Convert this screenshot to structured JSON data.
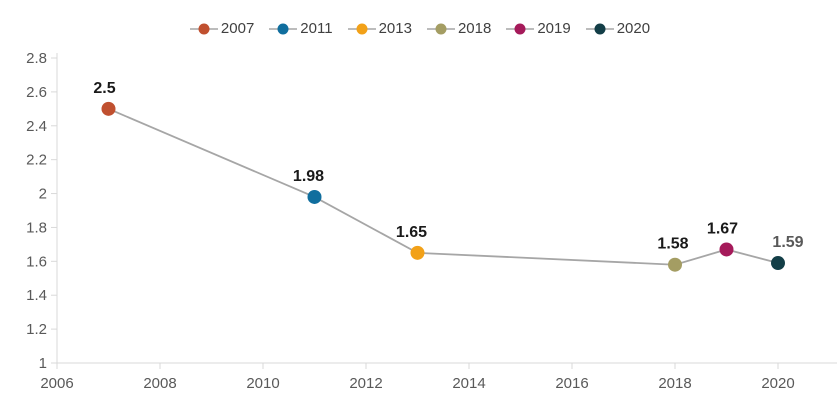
{
  "chart_data": {
    "type": "line",
    "title": "",
    "xlabel": "",
    "ylabel": "",
    "x": [
      2007,
      2011,
      2013,
      2018,
      2019,
      2020
    ],
    "values": [
      2.5,
      1.98,
      1.65,
      1.58,
      1.67,
      1.59
    ],
    "point_labels": [
      "2.5",
      "1.98",
      "1.65",
      "1.58",
      "1.67",
      "1.59"
    ],
    "point_colors": [
      "#c0502f",
      "#106e9e",
      "#f2a118",
      "#a49d63",
      "#a51a5a",
      "#133e47"
    ],
    "point_label_colors": [
      "#1a1a1a",
      "#1a1a1a",
      "#1a1a1a",
      "#1a1a1a",
      "#1a1a1a",
      "#595959"
    ],
    "line_color": "#a6a6a6",
    "axis_color": "#d9d9d9",
    "tick_label_color": "#595959",
    "background_color": "#ffffff",
    "xlim": [
      2006,
      2020
    ],
    "ylim": [
      1,
      2.8
    ],
    "grid": false,
    "x_ticks": [
      {
        "value": 2006,
        "label": "2006"
      },
      {
        "value": 2008,
        "label": "2008"
      },
      {
        "value": 2010,
        "label": "2010"
      },
      {
        "value": 2012,
        "label": "2012"
      },
      {
        "value": 2014,
        "label": "2014"
      },
      {
        "value": 2016,
        "label": "2016"
      },
      {
        "value": 2018,
        "label": "2018"
      },
      {
        "value": 2020,
        "label": "2020"
      }
    ],
    "y_ticks": [
      {
        "value": 2.8,
        "label": "2.8"
      },
      {
        "value": 2.6,
        "label": "2.6"
      },
      {
        "value": 2.4,
        "label": "2.4"
      },
      {
        "value": 2.2,
        "label": "2.2"
      },
      {
        "value": 2.0,
        "label": "2"
      },
      {
        "value": 1.8,
        "label": "1.8"
      },
      {
        "value": 1.6,
        "label": "1.6"
      },
      {
        "value": 1.4,
        "label": "1.4"
      },
      {
        "value": 1.2,
        "label": "1.2"
      },
      {
        "value": 1.0,
        "label": "1"
      }
    ],
    "legend": {
      "position": "top",
      "marker_line_color": "#a6a6a6",
      "text_color": "#404040",
      "entries": [
        {
          "label": "2007",
          "color": "#c0502f"
        },
        {
          "label": "2011",
          "color": "#106e9e"
        },
        {
          "label": "2013",
          "color": "#f2a118"
        },
        {
          "label": "2018",
          "color": "#a49d63"
        },
        {
          "label": "2019",
          "color": "#a51a5a"
        },
        {
          "label": "2020",
          "color": "#133e47"
        }
      ]
    }
  }
}
